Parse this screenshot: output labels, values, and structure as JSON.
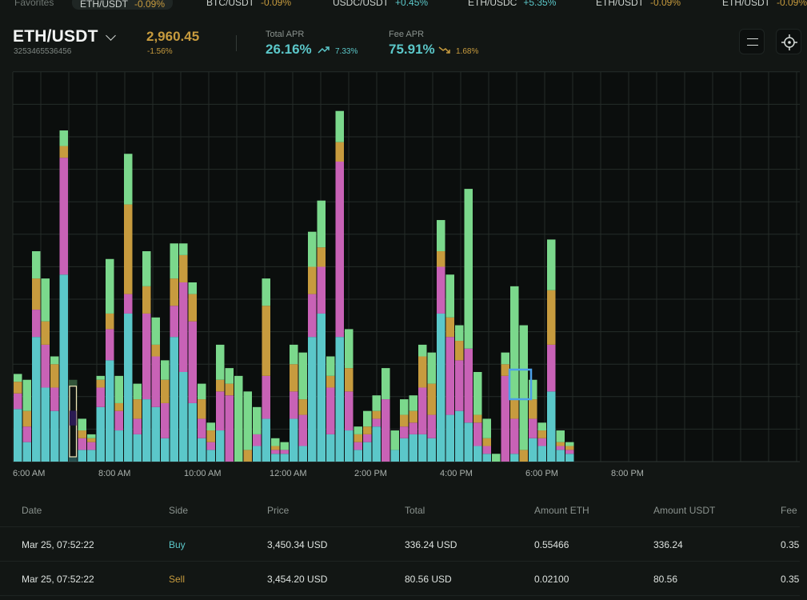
{
  "favorites": {
    "label": "Favorites",
    "items": [
      {
        "pair": "ETH/USDT",
        "change": "-0.09%",
        "dir": "neg",
        "active": true
      },
      {
        "pair": "BTC/USDT",
        "change": "-0.09%",
        "dir": "neg"
      },
      {
        "pair": "USDC/USDT",
        "change": "+0.45%",
        "dir": "pos"
      },
      {
        "pair": "ETH/USDC",
        "change": "+5.35%",
        "dir": "pos"
      },
      {
        "pair": "ETH/USDT",
        "change": "-0.09%",
        "dir": "neg"
      },
      {
        "pair": "ETH/USDT",
        "change": "-0.09%",
        "dir": "neg"
      }
    ]
  },
  "header": {
    "pair": "ETH/USDT",
    "pair_id": "3253465536456",
    "price": "2,960.45",
    "price_change": "-1.56%",
    "total_apr_label": "Total APR",
    "total_apr": "26.16%",
    "total_apr_change": "7.33%",
    "fee_apr_label": "Fee APR",
    "fee_apr": "75.91%",
    "fee_apr_change": "1.68%"
  },
  "icons": {
    "menu": "menu-icon",
    "crosshair": "crosshair-icon",
    "chevron": "chevron-down-icon",
    "trend_up": "trend-up-icon",
    "trend_down": "trend-down-icon"
  },
  "colors": {
    "teal": "#5bc7c9",
    "magenta": "#c862b6",
    "gold": "#c79b3e",
    "green": "#7bd88c",
    "highlight": "#4da0e8"
  },
  "chart_data": {
    "type": "bar",
    "stacked": true,
    "x_ticks": [
      "6:00 AM",
      "8:00 AM",
      "10:00 AM",
      "12:00 AM",
      "2:00 PM",
      "4:00 PM",
      "6:00 PM",
      "8:00 PM"
    ],
    "ylim": [
      0,
      100
    ],
    "grid": true,
    "bars": [
      [
        0,
        13.5,
        4,
        3,
        2,
        0
      ],
      [
        1,
        5,
        4,
        4,
        8,
        0
      ],
      [
        2,
        32,
        7,
        8,
        7,
        0
      ],
      [
        3,
        19,
        11,
        6,
        11,
        0
      ],
      [
        4,
        13,
        6,
        6,
        2,
        0
      ],
      [
        5,
        48,
        30,
        3,
        4,
        0
      ],
      [
        6,
        6,
        6,
        2,
        7,
        0
      ],
      [
        7,
        3,
        3,
        2,
        3,
        0
      ],
      [
        8,
        3,
        2,
        1,
        1,
        0
      ],
      [
        9,
        14,
        5,
        2,
        1,
        0
      ],
      [
        10,
        26,
        8,
        4,
        14,
        0
      ],
      [
        11,
        8,
        5,
        2,
        7,
        0
      ],
      [
        12,
        38,
        5,
        23,
        13,
        0
      ],
      [
        13,
        7,
        4,
        5,
        4,
        0
      ],
      [
        14,
        16,
        22,
        7,
        9,
        0
      ],
      [
        15,
        14,
        13,
        3,
        7,
        0
      ],
      [
        16,
        6,
        9,
        6,
        5,
        0
      ],
      [
        17,
        32,
        8,
        7,
        9,
        0
      ],
      [
        18,
        23,
        23,
        7,
        3,
        0
      ],
      [
        19,
        15,
        21,
        7,
        3,
        0
      ],
      [
        20,
        6,
        5,
        5,
        4,
        0
      ],
      [
        21,
        3,
        2,
        3,
        2,
        0
      ],
      [
        22,
        8,
        10,
        3,
        9,
        0
      ],
      [
        23,
        0,
        17,
        3,
        4,
        0
      ],
      [
        24,
        0,
        0,
        0,
        22,
        0
      ],
      [
        25,
        0,
        0,
        3,
        15,
        0
      ],
      [
        26,
        4,
        3,
        0,
        7,
        0
      ],
      [
        27,
        11,
        11,
        18,
        7,
        0
      ],
      [
        28,
        2,
        1,
        1,
        2,
        0
      ],
      [
        29,
        2,
        1,
        0,
        2,
        0
      ],
      [
        30,
        11,
        7,
        7,
        5,
        0
      ],
      [
        31,
        4,
        8,
        4,
        12,
        0
      ],
      [
        32,
        32,
        11,
        7,
        9,
        0
      ],
      [
        33,
        38,
        12,
        5,
        12,
        0
      ],
      [
        34,
        7,
        12,
        3,
        5,
        0
      ],
      [
        35,
        32,
        45,
        5,
        8,
        0
      ],
      [
        36,
        8,
        10,
        6,
        10,
        0
      ],
      [
        37,
        3,
        2,
        2,
        2,
        0
      ],
      [
        38,
        5,
        2,
        2,
        4,
        0
      ],
      [
        39,
        9,
        2,
        2,
        4,
        0
      ],
      [
        40,
        0,
        16,
        0,
        8,
        0
      ],
      [
        41,
        3,
        0,
        0,
        5,
        0
      ],
      [
        42,
        6,
        3,
        3,
        4,
        0
      ],
      [
        43,
        7,
        3,
        3,
        4,
        0
      ],
      [
        44,
        7,
        12,
        8,
        3,
        0
      ],
      [
        45,
        6,
        6,
        8,
        8,
        0
      ],
      [
        46,
        38,
        12,
        4,
        8,
        0
      ],
      [
        47,
        12,
        20,
        5,
        11,
        0
      ],
      [
        48,
        13,
        13,
        5,
        4,
        0
      ],
      [
        49,
        10,
        19,
        0,
        41,
        0
      ],
      [
        50,
        4,
        6,
        2,
        11,
        0
      ],
      [
        51,
        2,
        2,
        2,
        5,
        0
      ],
      [
        52,
        0,
        0,
        0,
        2,
        0
      ],
      [
        53,
        0,
        22,
        3,
        3,
        0
      ],
      [
        54,
        2,
        9,
        5,
        29,
        0
      ],
      [
        55,
        0,
        0,
        3,
        32,
        0
      ],
      [
        56,
        6,
        5,
        5,
        5,
        0
      ],
      [
        57,
        4,
        2,
        2,
        2,
        0
      ],
      [
        58,
        18,
        12,
        14,
        13,
        0
      ],
      [
        59,
        3,
        1,
        1,
        3,
        0
      ],
      [
        60,
        2,
        1,
        1,
        1,
        0
      ]
    ],
    "highlight_bar": 6
  },
  "trades": {
    "columns": [
      "Date",
      "Side",
      "Price",
      "Total",
      "Amount ETH",
      "Amount USDT",
      "Fee"
    ],
    "rows": [
      {
        "date": "Mar 25, 07:52:22",
        "side": "Buy",
        "price": "3,450.34 USD",
        "total": "336.24 USD",
        "amount_eth": "0.55466",
        "amount_usdt": "336.24",
        "fee": "0.35"
      },
      {
        "date": "Mar 25, 07:52:22",
        "side": "Sell",
        "price": "3,454.20 USD",
        "total": "80.56 USD",
        "amount_eth": "0.02100",
        "amount_usdt": "80.56",
        "fee": "0.35"
      }
    ]
  }
}
